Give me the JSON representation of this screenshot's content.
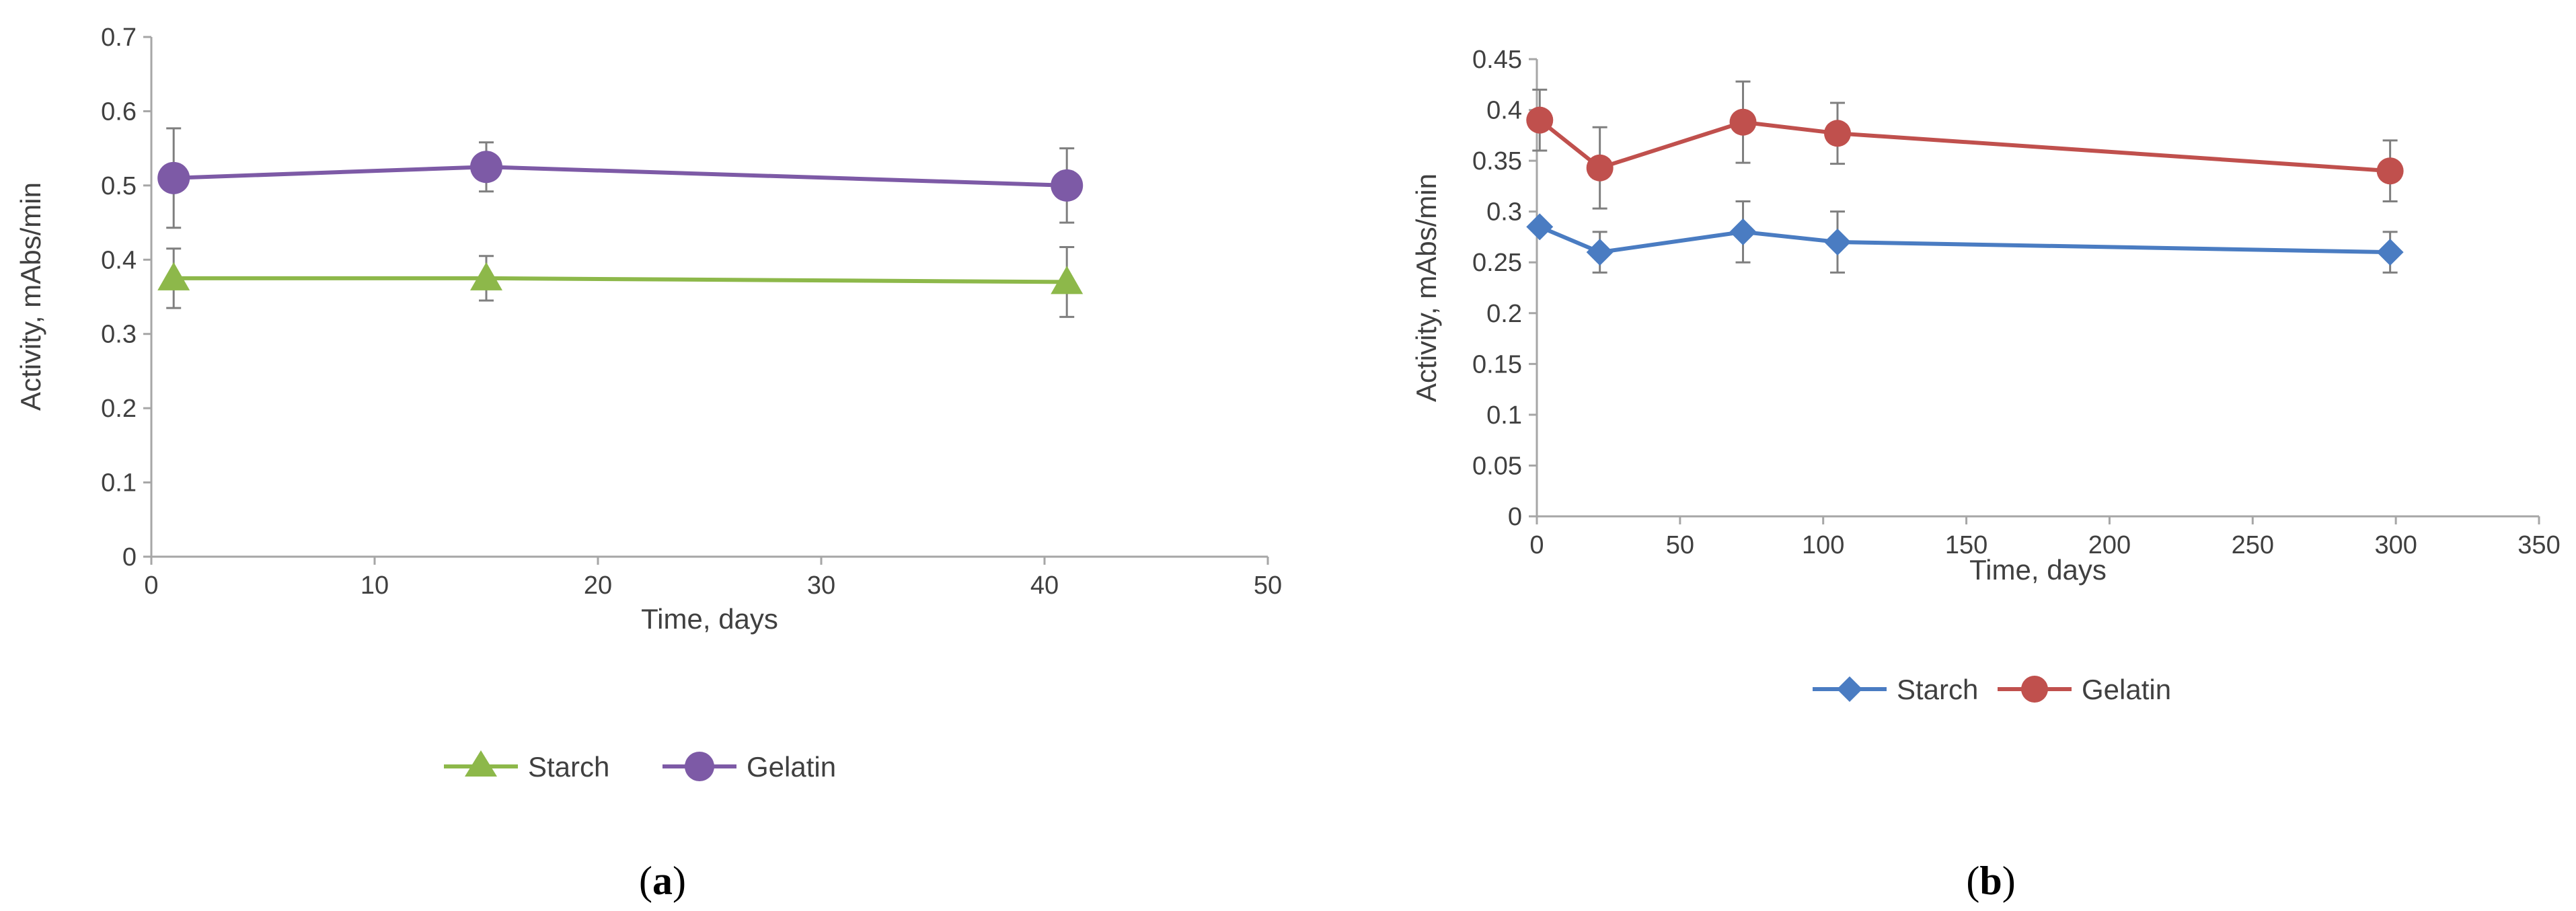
{
  "chart_data": [
    {
      "id": "a",
      "type": "line",
      "caption_open": "(",
      "caption_letter": "a",
      "caption_close": ")",
      "xlabel": "Time, days",
      "ylabel": "Activity, mAbs/min",
      "xlim": [
        0,
        50
      ],
      "ylim": [
        0,
        0.7
      ],
      "xticks": [
        0,
        10,
        20,
        30,
        40,
        50
      ],
      "yticks": [
        0,
        0.1,
        0.2,
        0.3,
        0.4,
        0.5,
        0.6,
        0.7
      ],
      "grid": false,
      "legend_position": "bottom",
      "series": [
        {
          "name": "Starch",
          "color": "#8db84a",
          "marker": "triangle",
          "x": [
            1,
            15,
            41
          ],
          "y": [
            0.375,
            0.375,
            0.37
          ],
          "err": [
            0.04,
            0.03,
            0.047
          ]
        },
        {
          "name": "Gelatin",
          "color": "#7d5aa6",
          "marker": "circle",
          "x": [
            1,
            15,
            41
          ],
          "y": [
            0.51,
            0.525,
            0.5
          ],
          "err": [
            0.067,
            0.033,
            0.05
          ]
        }
      ]
    },
    {
      "id": "b",
      "type": "line",
      "caption_open": "(",
      "caption_letter": "b",
      "caption_close": ")",
      "xlabel": "Time, days",
      "ylabel": "Activity, mAbs/min",
      "xlim": [
        0,
        350
      ],
      "ylim": [
        0,
        0.45
      ],
      "xticks": [
        0,
        50,
        100,
        150,
        200,
        250,
        300,
        350
      ],
      "yticks": [
        0,
        0.05,
        0.1,
        0.15,
        0.2,
        0.25,
        0.3,
        0.35,
        0.4,
        0.45
      ],
      "grid": false,
      "legend_position": "bottom",
      "series": [
        {
          "name": "Starch",
          "color": "#4a7cc2",
          "marker": "diamond",
          "x": [
            1,
            22,
            72,
            105,
            298
          ],
          "y": [
            0.285,
            0.26,
            0.28,
            0.27,
            0.26
          ],
          "err": [
            0,
            0.02,
            0.03,
            0.03,
            0.02
          ]
        },
        {
          "name": "Gelatin",
          "color": "#c0504d",
          "marker": "circle",
          "x": [
            1,
            22,
            72,
            105,
            298
          ],
          "y": [
            0.39,
            0.343,
            0.388,
            0.377,
            0.34
          ],
          "err": [
            0.03,
            0.04,
            0.04,
            0.03,
            0.03
          ]
        }
      ]
    }
  ]
}
